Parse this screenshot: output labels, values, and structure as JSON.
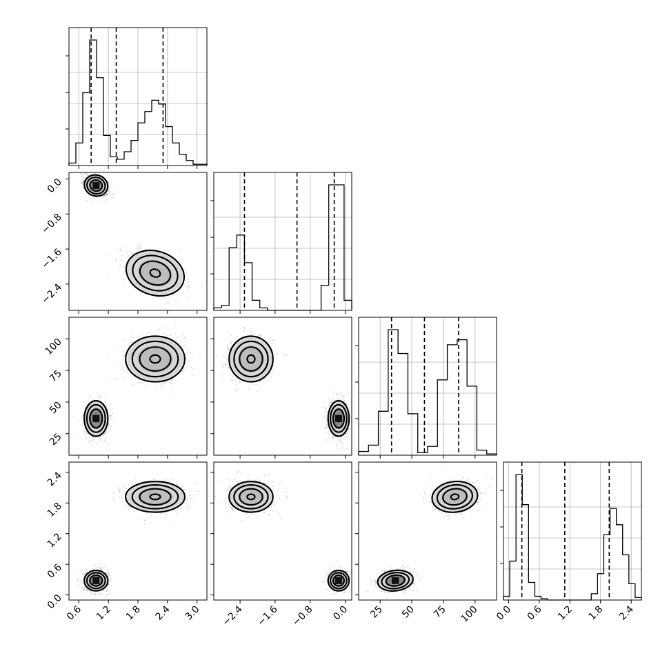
{
  "chart_data": {
    "type": "corner",
    "parameters": [
      {
        "ticks": [
          "0.6",
          "1.2",
          "1.8",
          "2.4",
          "3.0"
        ],
        "tick_values": [
          0.6,
          1.2,
          1.8,
          2.4,
          3.0
        ],
        "range": [
          0.4,
          3.2
        ],
        "quantiles": [
          0.85,
          1.36,
          2.31
        ]
      },
      {
        "ticks": [
          "−2.4",
          "−1.6",
          "−0.8",
          "0.0"
        ],
        "tick_values": [
          -2.4,
          -1.6,
          -0.8,
          0.0
        ],
        "range": [
          -3.0,
          0.15
        ],
        "quantiles": [
          -2.3,
          -1.1,
          -0.25
        ]
      },
      {
        "ticks": [
          "25",
          "50",
          "75",
          "100"
        ],
        "tick_values": [
          25,
          50,
          75,
          100
        ],
        "range": [
          8,
          117
        ],
        "quantiles": [
          34,
          60,
          87
        ]
      },
      {
        "ticks": [
          "0.0",
          "0.6",
          "1.2",
          "1.8",
          "2.4"
        ],
        "tick_values": [
          0.0,
          0.6,
          1.2,
          1.8,
          2.4
        ],
        "range": [
          -0.1,
          2.6
        ],
        "quantiles": [
          0.26,
          1.1,
          1.97
        ]
      }
    ],
    "histograms": [
      {
        "bins": [
          0.4,
          3.2
        ],
        "counts": [
          2,
          18,
          58,
          100,
          70,
          24,
          7,
          5,
          11,
          20,
          34,
          43,
          52,
          49,
          31,
          18,
          9,
          4,
          1,
          1
        ]
      },
      {
        "bins": [
          -3.0,
          0.15
        ],
        "counts": [
          2,
          4,
          50,
          60,
          38,
          8,
          2,
          0,
          0,
          0,
          0,
          0,
          0,
          0,
          20,
          100,
          100,
          8
        ]
      },
      {
        "bins": [
          8,
          117
        ],
        "counts": [
          3,
          8,
          35,
          100,
          81,
          33,
          2,
          7,
          60,
          88,
          92,
          55,
          4,
          1
        ]
      },
      {
        "bins": [
          -0.1,
          2.6
        ],
        "counts": [
          3,
          31,
          100,
          76,
          14,
          3,
          1,
          0,
          0,
          0,
          0,
          0,
          0,
          0,
          5,
          21,
          52,
          73,
          60,
          36,
          13,
          2
        ]
      }
    ],
    "modes": [
      {
        "mean": [
          0.95,
          -0.15,
          37,
          0.28
        ],
        "sd": [
          0.12,
          0.12,
          7,
          0.1
        ]
      },
      {
        "mean": [
          2.15,
          -2.15,
          84,
          1.92
        ],
        "sd": [
          0.3,
          0.25,
          9,
          0.15
        ]
      }
    ]
  }
}
